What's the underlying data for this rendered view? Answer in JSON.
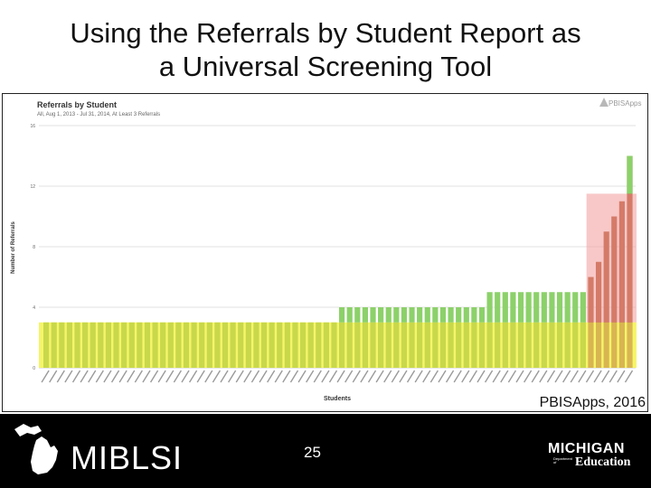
{
  "slide": {
    "title_line1": "Using the Referrals by Student Report as",
    "title_line2": "a Universal Screening Tool",
    "source_note": "PBISApps, 2016",
    "page_number": "25",
    "footer_left_logo": "MIBLSI",
    "footer_right_line1": "MICHIGAN",
    "footer_right_small": "Department of",
    "footer_right_line2": "Education"
  },
  "chart_data": {
    "type": "bar",
    "title": "Referrals by Student",
    "subtitle": "All, Aug 1, 2013 - Jul 31, 2014, At Least 3 Referrals",
    "brand": "PBISApps",
    "xlabel": "Students",
    "ylabel": "Number of Referrals",
    "ylim": [
      0,
      16
    ],
    "yticks": [
      0,
      4,
      8,
      12,
      16
    ],
    "grid": true,
    "values": [
      3,
      3,
      3,
      3,
      3,
      3,
      3,
      3,
      3,
      3,
      3,
      3,
      3,
      3,
      3,
      3,
      3,
      3,
      3,
      3,
      3,
      3,
      3,
      3,
      3,
      3,
      3,
      3,
      3,
      3,
      3,
      3,
      3,
      3,
      3,
      3,
      3,
      3,
      4,
      4,
      4,
      4,
      4,
      4,
      4,
      4,
      4,
      4,
      4,
      4,
      4,
      4,
      4,
      4,
      4,
      4,
      4,
      5,
      5,
      5,
      5,
      5,
      5,
      5,
      5,
      5,
      5,
      5,
      5,
      5,
      6,
      7,
      9,
      10,
      11,
      14
    ],
    "bands": [
      {
        "name": "yellow-band",
        "from": 0,
        "to": 3,
        "color": "#f5f56a"
      },
      {
        "name": "red-box",
        "to": 11.5,
        "color": "#f39a9a"
      }
    ],
    "colors": {
      "green": "#8cd16a",
      "olive": "#c8d84a",
      "red": "#b0552c",
      "yellow_band": "#f5f56a",
      "red_box": "#f39a9a",
      "grid": "#e2e2e2"
    }
  }
}
